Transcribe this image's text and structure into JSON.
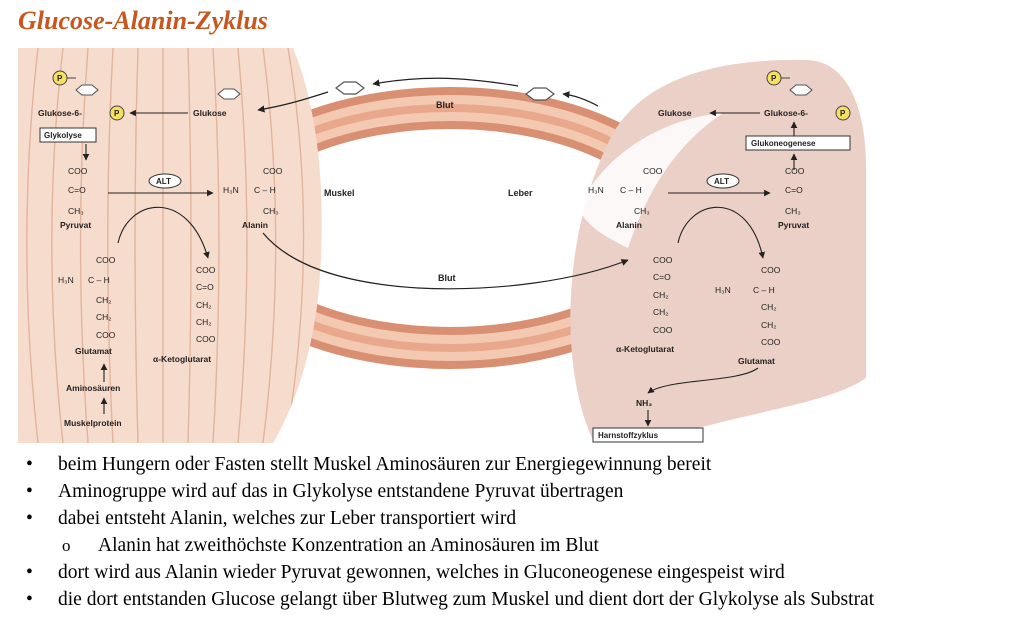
{
  "title": "Glucose-Alanin-Zyklus",
  "diagram": {
    "muscle": {
      "glucose6p": "Glukose-6-",
      "p": "P",
      "glucose": "Glukose",
      "glycolysis": "Glykolyse",
      "pyruvate": "Pyruvat",
      "alanine": "Alanin",
      "alt": "ALT",
      "glutamate": "Glutamat",
      "ketoglutarate": "α-Ketoglutarat",
      "amino_acids": "Aminosäuren",
      "muscle_protein": "Muskelprotein",
      "organ_label": "Muskel"
    },
    "liver": {
      "glucose": "Glukose",
      "glucose6p": "Glukose-6-",
      "p": "P",
      "gluconeogenesis": "Glukoneogenese",
      "alanine": "Alanin",
      "pyruvate": "Pyruvat",
      "alt": "ALT",
      "ketoglutarate": "α-Ketoglutarat",
      "glutamate": "Glutamat",
      "nh3": "NH₃",
      "urea_cycle": "Harnstoffzyklus",
      "organ_label": "Leber"
    },
    "blood_top": "Blut",
    "blood_bottom": "Blut",
    "chem": {
      "coo": "COO",
      "co": "C=O",
      "ch3": "CH₃",
      "ch2": "CH₂",
      "c_h": "C – H",
      "h3n": "H₃N"
    },
    "colors": {
      "muscle_fill": "#f6dccd",
      "muscle_stripe": "#e2b49d",
      "liver_fill": "#ead0c6",
      "vessel_outer": "#d98f72",
      "vessel_inner": "#f3c9b2",
      "title": "#c8561e"
    }
  },
  "bullets": [
    {
      "text": "beim Hungern oder Fasten stellt Muskel Aminosäuren zur Energiegewinnung bereit",
      "level": 1
    },
    {
      "text": "Aminogruppe wird auf das in Glykolyse entstandene Pyruvat übertragen",
      "level": 1
    },
    {
      "text": "dabei entsteht Alanin, welches zur Leber transportiert wird",
      "level": 1
    },
    {
      "text": "Alanin hat zweithöchste Konzentration an Aminosäuren im Blut",
      "level": 2
    },
    {
      "text": "dort wird aus Alanin wieder Pyruvat gewonnen, welches in Gluconeogenese eingespeist wird",
      "level": 1
    },
    {
      "text": "die dort entstanden Glucose gelangt über Blutweg zum Muskel und dient dort der Glykolyse als Substrat",
      "level": 1
    }
  ]
}
